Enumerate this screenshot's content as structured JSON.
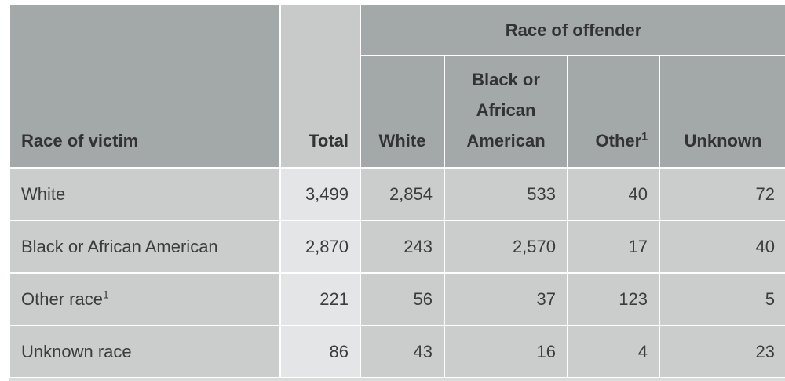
{
  "table": {
    "corner_header": "Race of victim",
    "total_header": "Total",
    "group_header": "Race of offender",
    "offender_columns": [
      {
        "label": "White",
        "sup": ""
      },
      {
        "label": "Black or African American",
        "sup": ""
      },
      {
        "label": "Other",
        "sup": "1"
      },
      {
        "label": "Unknown",
        "sup": ""
      }
    ],
    "rows": [
      {
        "label": "White",
        "sup": "",
        "total": "3,499",
        "values": [
          "2,854",
          "533",
          "40",
          "72"
        ]
      },
      {
        "label": "Black or African American",
        "sup": "",
        "total": "2,870",
        "values": [
          "243",
          "2,570",
          "17",
          "40"
        ]
      },
      {
        "label": "Other race",
        "sup": "1",
        "total": "221",
        "values": [
          "56",
          "37",
          "123",
          "5"
        ]
      },
      {
        "label": "Unknown race",
        "sup": "",
        "total": "86",
        "values": [
          "43",
          "16",
          "4",
          "23"
        ]
      }
    ]
  },
  "colors": {
    "header_bg": "#a3a8a8",
    "total_header_bg": "#c8caca",
    "cell_bg": "#cbcdcd",
    "total_cell_bg": "#e4e5e6",
    "border": "#ffffff"
  }
}
